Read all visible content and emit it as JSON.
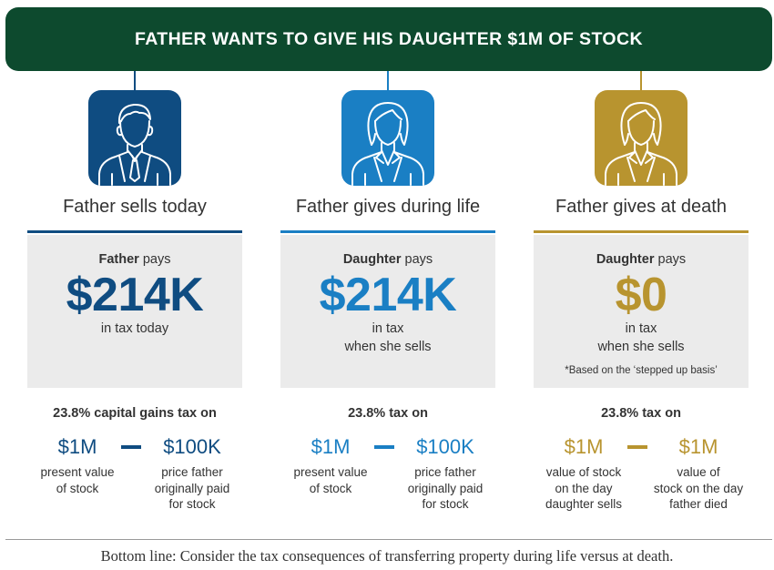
{
  "banner": {
    "title": "FATHER WANTS TO GIVE HIS DAUGHTER $1M OF STOCK"
  },
  "colors": {
    "banner": "#0d4a2e",
    "navy": "#0f4c81",
    "blue": "#1a7fc4",
    "gold": "#b8942f"
  },
  "scenarios": [
    {
      "icon": "father-icon",
      "heading": "Father sells today",
      "payer_bold": "Father",
      "payer_rest": " pays",
      "amount": "$214K",
      "note_line1": "in tax today",
      "note_line2": "",
      "footnote": "",
      "tax_line": "23.8% capital gains tax on",
      "left_value": "$1M",
      "left_desc": [
        "present value",
        "of stock"
      ],
      "right_value": "$100K",
      "right_desc": [
        "price father",
        "originally paid",
        "for stock"
      ]
    },
    {
      "icon": "daughter-icon",
      "heading": "Father gives during life",
      "payer_bold": "Daughter",
      "payer_rest": " pays",
      "amount": "$214K",
      "note_line1": "in tax",
      "note_line2": "when she sells",
      "footnote": "",
      "tax_line": "23.8% tax on",
      "left_value": "$1M",
      "left_desc": [
        "present value",
        "of stock"
      ],
      "right_value": "$100K",
      "right_desc": [
        "price father",
        "originally paid",
        "for stock"
      ]
    },
    {
      "icon": "daughter-icon",
      "heading": "Father gives at death",
      "payer_bold": "Daughter",
      "payer_rest": " pays",
      "amount": "$0",
      "note_line1": "in tax",
      "note_line2": "when she sells",
      "footnote": "*Based on the ‘stepped up basis’",
      "tax_line": "23.8% tax on",
      "left_value": "$1M",
      "left_desc": [
        "value of stock",
        "on the day",
        "daughter sells"
      ],
      "right_value": "$1M",
      "right_desc": [
        "value of",
        "stock on the day",
        "father died"
      ]
    }
  ],
  "footer": {
    "bottom_line": "Bottom line: Consider the tax consequences of transferring property during life versus at death."
  }
}
